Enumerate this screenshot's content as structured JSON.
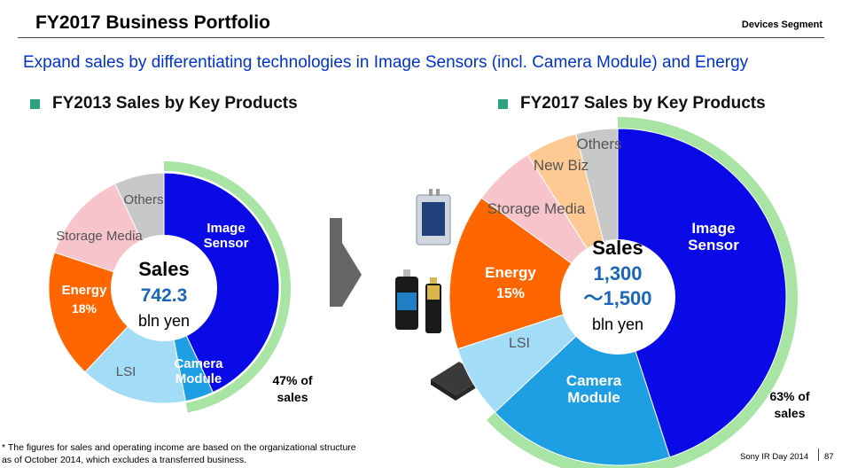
{
  "header": {
    "title": "FY2017 Business Portfolio",
    "segment": "Devices Segment",
    "subtitle": "Expand sales by differentiating technologies in Image Sensors (incl. Camera Module) and Energy"
  },
  "colors": {
    "image_sensor": "#0a0ae6",
    "camera_module": "#1f9fe3",
    "lsi": "#a3dcf7",
    "energy": "#ff6600",
    "storage_media": "#f7c4cc",
    "new_biz": "#ffc993",
    "others": "#c8c8c8",
    "share_ring": "#a8e4a4",
    "bullet": "#2ea37e",
    "accent_blue": "#0033cc",
    "value_blue": "#1a66b8"
  },
  "chart_data": [
    {
      "type": "pie",
      "title": "FY2013 Sales by Key Products",
      "center_label": "Sales",
      "center_value": "742.3",
      "center_unit": "bln yen",
      "share_note": "47% of sales",
      "share_percent": 47,
      "slices": [
        {
          "key": "image_sensor",
          "label": "Image Sensor",
          "value_pct": 43,
          "print": ""
        },
        {
          "key": "camera_module",
          "label": "Camera Module",
          "value_pct": 4,
          "print": ""
        },
        {
          "key": "lsi",
          "label": "LSI",
          "value_pct": 15,
          "print": ""
        },
        {
          "key": "energy",
          "label": "Energy",
          "value_pct": 18,
          "print": "18%"
        },
        {
          "key": "storage_media",
          "label": "Storage Media",
          "value_pct": 13,
          "print": ""
        },
        {
          "key": "others",
          "label": "Others",
          "value_pct": 7,
          "print": ""
        }
      ]
    },
    {
      "type": "pie",
      "title": "FY2017 Sales by Key Products",
      "center_label": "Sales",
      "center_value": "1,300\n～1,500",
      "center_unit": "bln yen",
      "share_note": "63% of sales",
      "share_percent": 63,
      "slices": [
        {
          "key": "image_sensor",
          "label": "Image Sensor",
          "value_pct": 45,
          "print": ""
        },
        {
          "key": "camera_module",
          "label": "Camera Module",
          "value_pct": 18,
          "print": ""
        },
        {
          "key": "lsi",
          "label": "LSI",
          "value_pct": 7,
          "print": ""
        },
        {
          "key": "energy",
          "label": "Energy",
          "value_pct": 15,
          "print": "15%"
        },
        {
          "key": "storage_media",
          "label": "Storage Media",
          "value_pct": 6,
          "print": ""
        },
        {
          "key": "new_biz",
          "label": "New Biz",
          "value_pct": 5,
          "print": ""
        },
        {
          "key": "others",
          "label": "Others",
          "value_pct": 4,
          "print": ""
        }
      ]
    }
  ],
  "footnote": "* The figures for sales and operating income are based on the organizational structure as of October 2014, which excludes a transferred business.",
  "footer": {
    "brand": "Sony IR Day 2014",
    "page": "87"
  }
}
